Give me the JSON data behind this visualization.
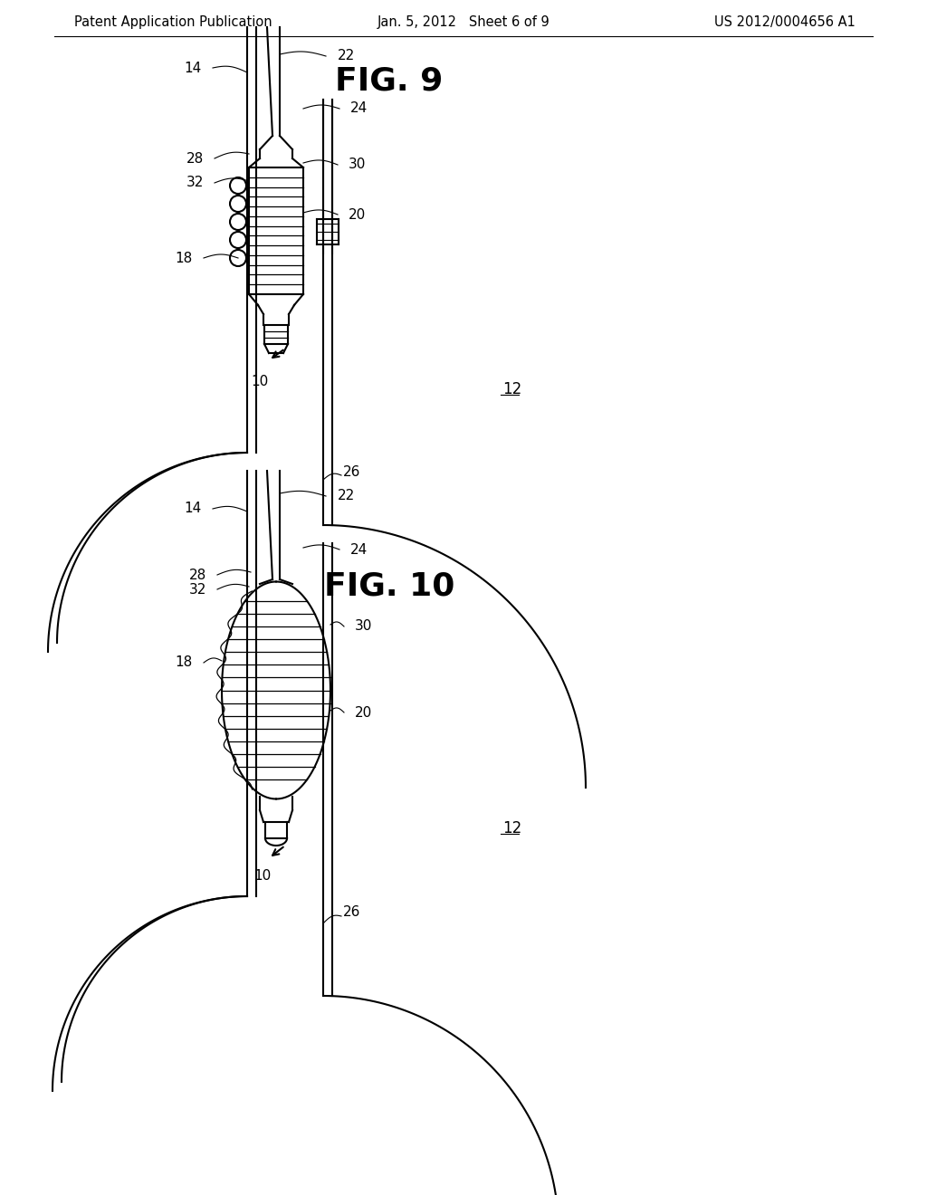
{
  "background_color": "#ffffff",
  "header_left": "Patent Application Publication",
  "header_center": "Jan. 5, 2012   Sheet 6 of 9",
  "header_right": "US 2012/0004656 A1",
  "fig9_title": "FIG. 9",
  "fig10_title": "FIG. 10",
  "line_color": "#000000",
  "text_color": "#000000",
  "header_fontsize": 10.5,
  "title_fontsize": 26,
  "label_fontsize": 11
}
